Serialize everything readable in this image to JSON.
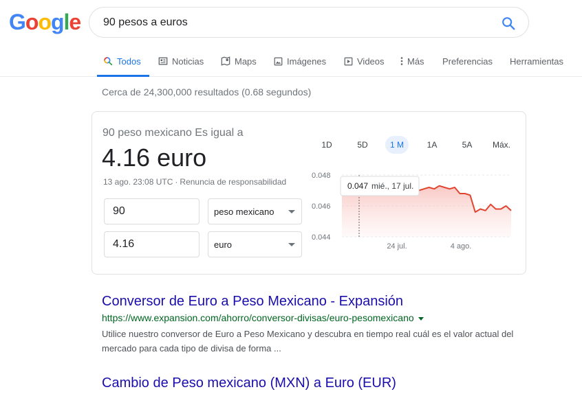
{
  "logo": {
    "letters": [
      "G",
      "o",
      "o",
      "g",
      "l",
      "e"
    ]
  },
  "search": {
    "query": "90 pesos a euros"
  },
  "tabs": [
    {
      "label": "Todos",
      "icon": "search-icon"
    },
    {
      "label": "Noticias",
      "icon": "news-icon"
    },
    {
      "label": "Maps",
      "icon": "map-icon"
    },
    {
      "label": "Imágenes",
      "icon": "image-icon"
    },
    {
      "label": "Videos",
      "icon": "video-icon"
    },
    {
      "label": "Más",
      "icon": "more-icon"
    },
    {
      "label": "Preferencias"
    },
    {
      "label": "Herramientas"
    }
  ],
  "colors": {
    "blue": "#4285f4",
    "red": "#ea4335",
    "yellow": "#fbbc05",
    "green": "#34a853",
    "link": "#1a0dab",
    "url": "#006621",
    "chart_line": "#e0452f"
  },
  "stats": "Cerca de 24,300,000 resultados (0.68 segundos)",
  "converter": {
    "label": "90 peso mexicano Es igual a",
    "value": "4.16 euro",
    "date": "13 ago. 23:08 UTC",
    "separator": "·",
    "disclaimer": "Renuncia de responsabilidad",
    "from_amount": "90",
    "from_currency": "peso mexicano",
    "to_amount": "4.16",
    "to_currency": "euro",
    "ranges": [
      "1D",
      "5D",
      "1 M",
      "1A",
      "5A",
      "Máx."
    ],
    "active_range": "1 M"
  },
  "chart_data": {
    "type": "area",
    "y_ticks": [
      "0.048",
      "0.046",
      "0.044"
    ],
    "ylim": [
      0.044,
      0.048
    ],
    "x_ticks": [
      "24 jul.",
      "4 ago."
    ],
    "tooltip": {
      "value": "0.047",
      "date": "mié., 17 jul."
    },
    "values": [
      0.0476,
      0.0476,
      0.0477,
      0.0476,
      0.0475,
      0.0471,
      0.0472,
      0.0472,
      0.0472,
      0.0473,
      0.0472,
      0.0473,
      0.0472,
      0.0471,
      0.0472,
      0.047,
      0.0471,
      0.0472,
      0.0471,
      0.0473,
      0.0472,
      0.0471,
      0.0472,
      0.0468,
      0.0468,
      0.0467,
      0.0456,
      0.0458,
      0.0457,
      0.0461,
      0.0458,
      0.0458,
      0.046,
      0.0457
    ]
  },
  "results": [
    {
      "title": "Conversor de Euro a Peso Mexicano - Expansión",
      "url": "https://www.expansion.com/ahorro/conversor-divisas/euro-pesomexicano",
      "snippet": "Utilice nuestro conversor de Euro a Peso Mexicano y descubra en tiempo real cuál es el valor actual del mercado para cada tipo de divisa de forma ..."
    },
    {
      "title": "Cambio de Peso mexicano (MXN) a Euro (EUR)"
    }
  ]
}
